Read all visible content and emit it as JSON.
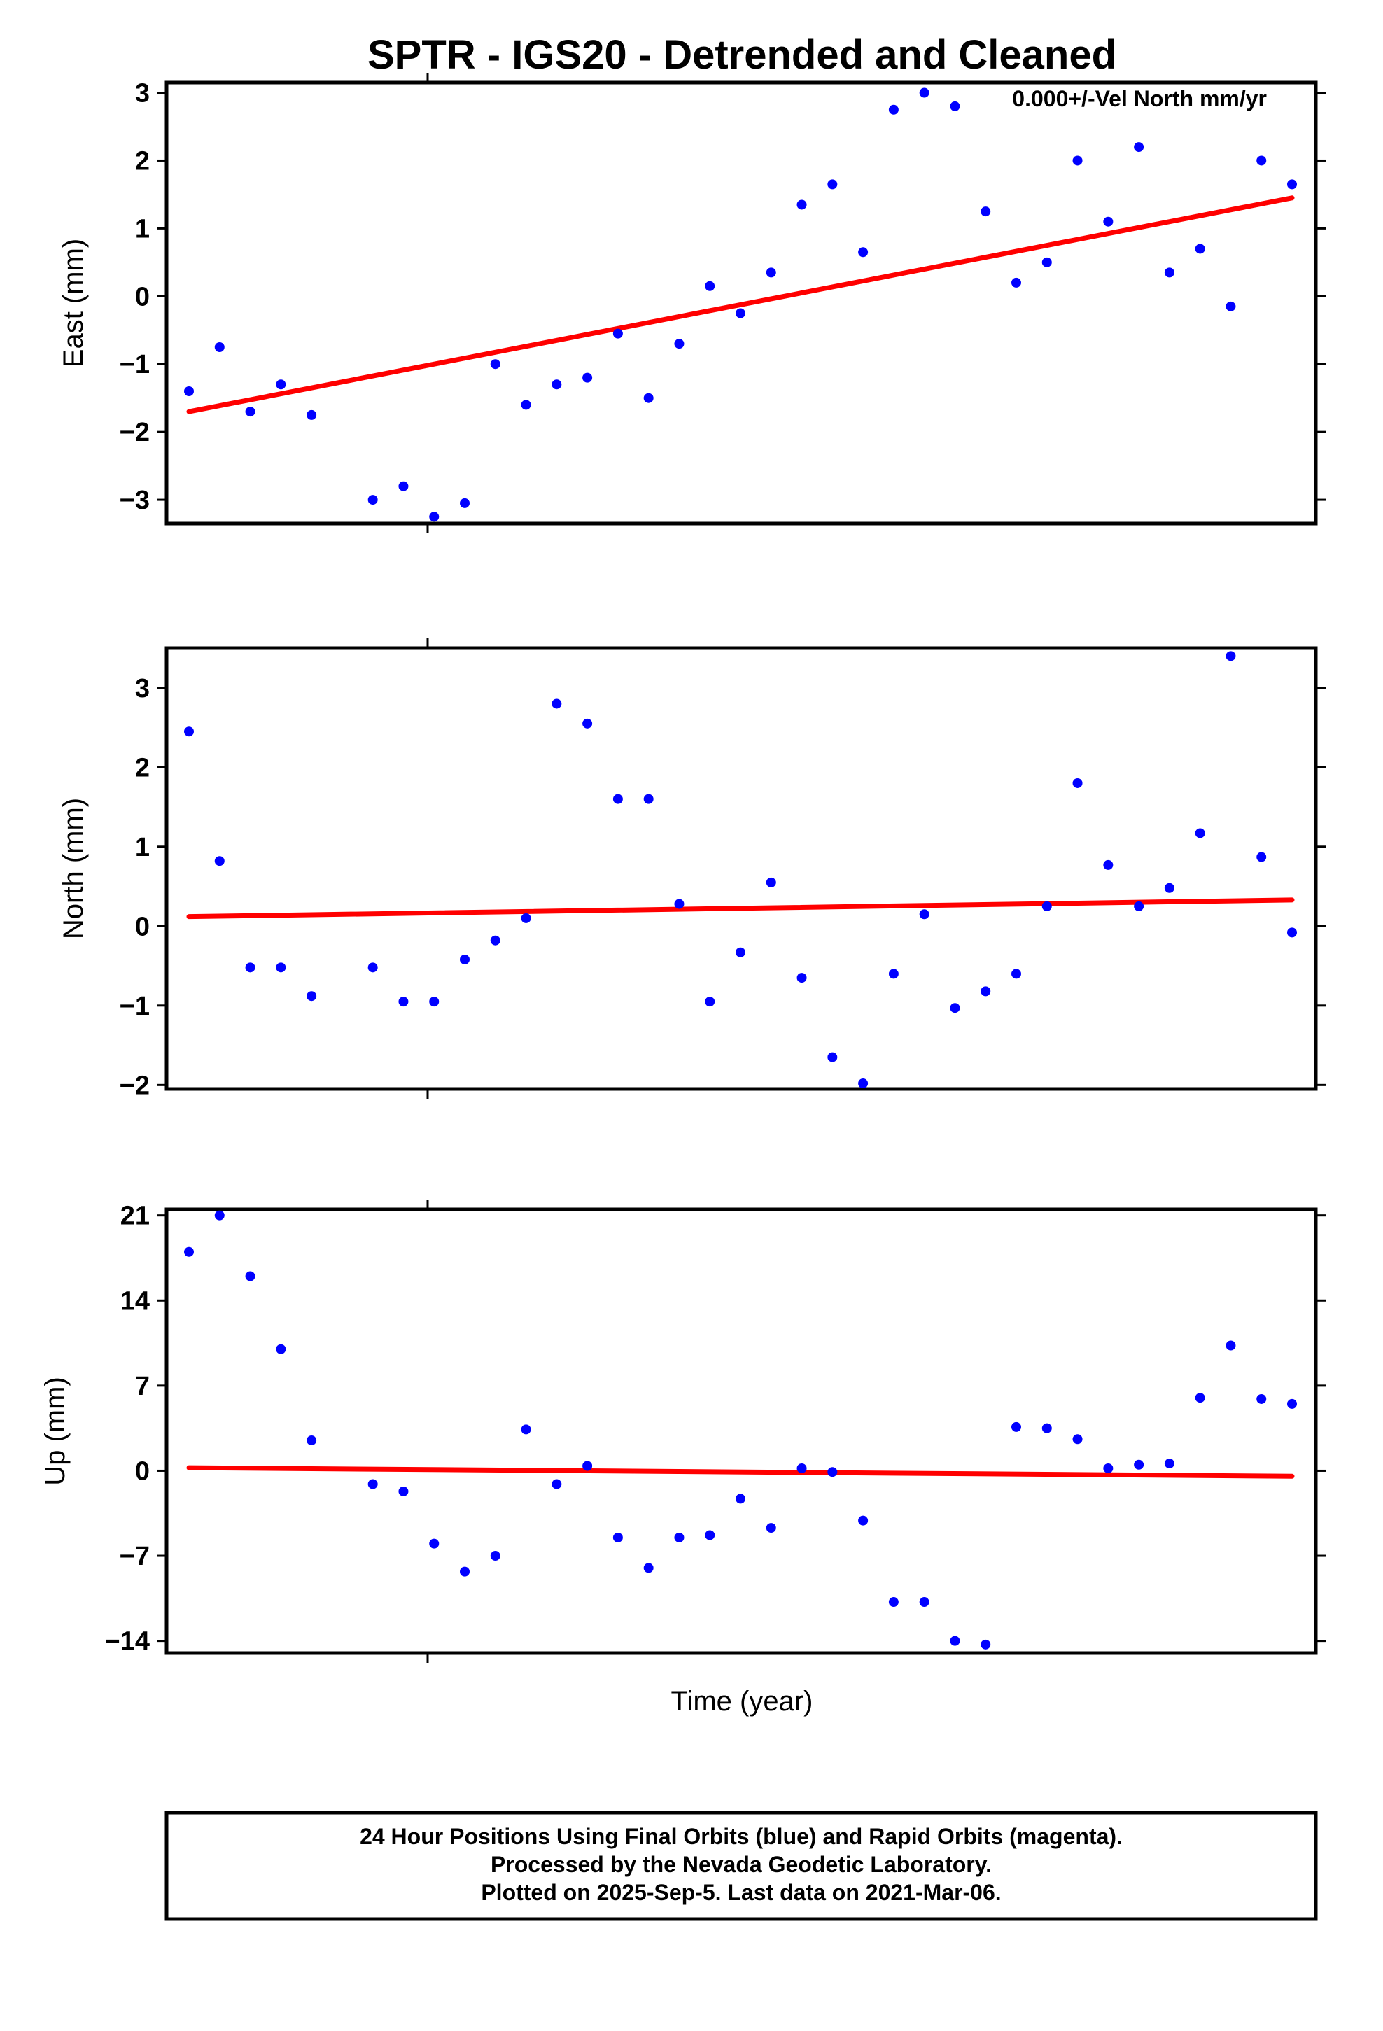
{
  "chart_data": [
    {
      "type": "scatter",
      "panel": "east",
      "title": "SPTR - IGS20 - Detrended and Cleaned",
      "ylabel": "East (mm)",
      "xlabel": "",
      "ylim": [
        -3.35,
        3.15
      ],
      "yticks": [
        -3,
        -2,
        -1,
        0,
        1,
        2,
        3
      ],
      "ytick_labels": [
        "−3",
        "−2",
        "−1",
        "0",
        "1",
        "2",
        "3"
      ],
      "annotation": "0.000+/-Vel North mm/yr",
      "series": [
        {
          "name": "Final Orbits",
          "color": "#0000ff",
          "x": [
            0,
            1,
            2,
            3,
            4,
            6,
            7,
            8,
            9,
            10,
            11,
            12,
            13,
            14,
            15,
            16,
            17,
            18,
            19,
            20,
            21,
            22,
            23,
            24,
            25,
            26,
            27,
            28,
            29,
            30,
            31,
            32,
            33,
            34,
            35,
            36
          ],
          "values": [
            -1.4,
            -0.75,
            -1.7,
            -1.3,
            -1.75,
            -3.0,
            -2.8,
            -3.25,
            -3.05,
            -1.0,
            -1.6,
            -1.3,
            -1.2,
            -0.55,
            -1.5,
            -0.7,
            0.15,
            -0.25,
            0.35,
            1.35,
            1.65,
            0.65,
            2.75,
            3.0,
            2.8,
            1.25,
            0.2,
            0.5,
            2.0,
            1.1,
            2.2,
            0.35,
            0.7,
            -0.15,
            2.0,
            1.65
          ]
        }
      ],
      "trend": {
        "name": "Trend",
        "color": "#ff0000",
        "x": [
          0,
          36
        ],
        "values": [
          -1.7,
          1.45
        ]
      }
    },
    {
      "type": "scatter",
      "panel": "north",
      "ylabel": "North (mm)",
      "xlabel": "",
      "ylim": [
        -2.05,
        3.5
      ],
      "yticks": [
        -2,
        -1,
        0,
        1,
        2,
        3
      ],
      "ytick_labels": [
        "−2",
        "−1",
        "0",
        "1",
        "2",
        "3"
      ],
      "series": [
        {
          "name": "Final Orbits",
          "color": "#0000ff",
          "x": [
            0,
            1,
            2,
            3,
            4,
            6,
            7,
            8,
            9,
            10,
            11,
            12,
            13,
            14,
            15,
            16,
            17,
            18,
            19,
            20,
            21,
            22,
            23,
            24,
            25,
            26,
            27,
            28,
            29,
            30,
            31,
            32,
            33,
            34,
            35,
            36
          ],
          "values": [
            2.45,
            0.82,
            -0.52,
            -0.52,
            -0.88,
            -0.52,
            -0.95,
            -0.95,
            -0.42,
            -0.18,
            0.1,
            2.8,
            2.55,
            1.6,
            1.6,
            0.28,
            -0.95,
            -0.33,
            0.55,
            -0.65,
            -1.65,
            -1.98,
            -0.6,
            0.15,
            -1.03,
            -0.82,
            -0.6,
            0.25,
            1.8,
            0.77,
            0.25,
            0.48,
            1.17,
            3.4,
            0.87,
            -0.08
          ]
        }
      ],
      "trend": {
        "name": "Trend",
        "color": "#ff0000",
        "x": [
          0,
          36
        ],
        "values": [
          0.12,
          0.33
        ]
      }
    },
    {
      "type": "scatter",
      "panel": "up",
      "ylabel": "Up (mm)",
      "xlabel": "Time (year)",
      "ylim": [
        -15,
        21.5
      ],
      "yticks": [
        -14,
        -7,
        0,
        7,
        14,
        21
      ],
      "ytick_labels": [
        "−14",
        "−7",
        "0",
        "7",
        "14",
        "21"
      ],
      "series": [
        {
          "name": "Final Orbits",
          "color": "#0000ff",
          "x": [
            0,
            1,
            2,
            3,
            4,
            6,
            7,
            8,
            9,
            10,
            11,
            12,
            13,
            14,
            15,
            16,
            17,
            18,
            19,
            20,
            21,
            22,
            23,
            24,
            25,
            26,
            27,
            28,
            29,
            30,
            31,
            32,
            33,
            34,
            35,
            36
          ],
          "values": [
            18,
            21,
            16,
            10,
            2.5,
            -1.1,
            -1.7,
            -6,
            -8.3,
            -7,
            3.4,
            -1.1,
            0.4,
            -5.5,
            -8,
            -5.5,
            -5.3,
            -2.3,
            -4.7,
            0.2,
            -0.1,
            -4.1,
            -10.8,
            -10.8,
            -14,
            -14.3,
            3.6,
            3.5,
            2.6,
            0.2,
            0.5,
            0.6,
            6,
            10.3,
            5.9,
            5.5
          ]
        }
      ],
      "trend": {
        "name": "Trend",
        "color": "#ff0000",
        "x": [
          0,
          36
        ],
        "values": [
          0.25,
          -0.45
        ]
      }
    }
  ],
  "footer": {
    "line1": "24 Hour Positions Using Final Orbits (blue) and Rapid Orbits (magenta).",
    "line2": "Processed by the Nevada Geodetic Laboratory.",
    "line3": "Plotted on 2025-Sep-5. Last data on 2021-Mar-06."
  }
}
